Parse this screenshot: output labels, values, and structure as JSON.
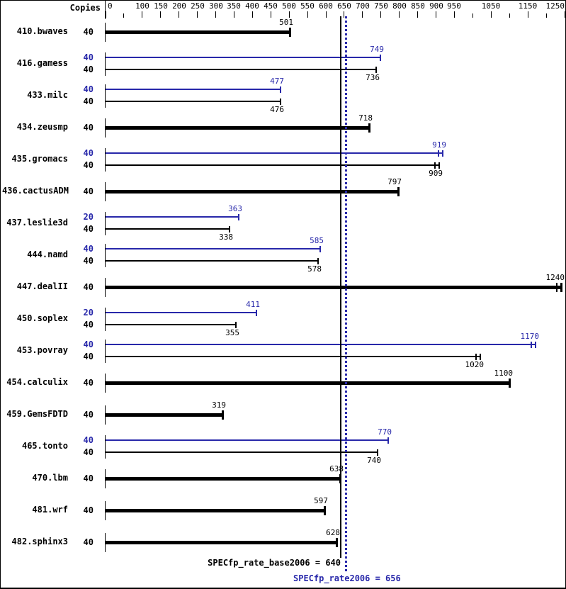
{
  "header": {
    "copies_label": "Copies"
  },
  "colors": {
    "base": "#000000",
    "peak": "#2828aa",
    "background": "#ffffff"
  },
  "axis": {
    "min": 0,
    "max": 1250,
    "ticks": [
      {
        "v": 0,
        "label": "0"
      },
      {
        "v": 50,
        "label": ""
      },
      {
        "v": 100,
        "label": "100"
      },
      {
        "v": 150,
        "label": "150"
      },
      {
        "v": 200,
        "label": "200"
      },
      {
        "v": 250,
        "label": "250"
      },
      {
        "v": 300,
        "label": "300"
      },
      {
        "v": 350,
        "label": "350"
      },
      {
        "v": 400,
        "label": "400"
      },
      {
        "v": 450,
        "label": "450"
      },
      {
        "v": 500,
        "label": "500"
      },
      {
        "v": 550,
        "label": "550"
      },
      {
        "v": 600,
        "label": "600"
      },
      {
        "v": 650,
        "label": "650"
      },
      {
        "v": 700,
        "label": "700"
      },
      {
        "v": 750,
        "label": "750"
      },
      {
        "v": 800,
        "label": "800"
      },
      {
        "v": 850,
        "label": "850"
      },
      {
        "v": 900,
        "label": "900"
      },
      {
        "v": 950,
        "label": "950"
      },
      {
        "v": 1000,
        "label": ""
      },
      {
        "v": 1050,
        "label": "1050"
      },
      {
        "v": 1100,
        "label": ""
      },
      {
        "v": 1150,
        "label": "1150"
      },
      {
        "v": 1200,
        "label": ""
      },
      {
        "v": 1250,
        "label": "1250"
      }
    ]
  },
  "ref_lines": [
    {
      "name": "base",
      "value": 640,
      "style": "solid",
      "color": "#000000"
    },
    {
      "name": "peak",
      "value": 656,
      "style": "dotted",
      "color": "#2828aa"
    }
  ],
  "footer": {
    "base_label": "SPECfp_rate_base2006 = 640",
    "peak_label": "SPECfp_rate2006 = 656"
  },
  "benchmarks": [
    {
      "name": "410.bwaves",
      "bars": [
        {
          "series": "base",
          "copies": "40",
          "value": 501,
          "bold": true
        }
      ]
    },
    {
      "name": "416.gamess",
      "bars": [
        {
          "series": "peak",
          "copies": "40",
          "value": 749
        },
        {
          "series": "base",
          "copies": "40",
          "value": 736
        }
      ]
    },
    {
      "name": "433.milc",
      "bars": [
        {
          "series": "peak",
          "copies": "40",
          "value": 477
        },
        {
          "series": "base",
          "copies": "40",
          "value": 476
        }
      ]
    },
    {
      "name": "434.zeusmp",
      "bars": [
        {
          "series": "base",
          "copies": "40",
          "value": 718,
          "bold": true
        }
      ]
    },
    {
      "name": "435.gromacs",
      "bars": [
        {
          "series": "peak",
          "copies": "40",
          "value": 919,
          "range": true
        },
        {
          "series": "base",
          "copies": "40",
          "value": 909,
          "range": true
        }
      ]
    },
    {
      "name": "436.cactusADM",
      "bars": [
        {
          "series": "base",
          "copies": "40",
          "value": 797,
          "bold": true
        }
      ]
    },
    {
      "name": "437.leslie3d",
      "bars": [
        {
          "series": "peak",
          "copies": "20",
          "value": 363
        },
        {
          "series": "base",
          "copies": "40",
          "value": 338
        }
      ]
    },
    {
      "name": "444.namd",
      "bars": [
        {
          "series": "peak",
          "copies": "40",
          "value": 585
        },
        {
          "series": "base",
          "copies": "40",
          "value": 578
        }
      ]
    },
    {
      "name": "447.dealII",
      "bars": [
        {
          "series": "base",
          "copies": "40",
          "value": 1240,
          "bold": true,
          "range": true
        }
      ]
    },
    {
      "name": "450.soplex",
      "bars": [
        {
          "series": "peak",
          "copies": "20",
          "value": 411
        },
        {
          "series": "base",
          "copies": "40",
          "value": 355
        }
      ]
    },
    {
      "name": "453.povray",
      "bars": [
        {
          "series": "peak",
          "copies": "40",
          "value": 1170,
          "range": true
        },
        {
          "series": "base",
          "copies": "40",
          "value": 1020,
          "range": true
        }
      ]
    },
    {
      "name": "454.calculix",
      "bars": [
        {
          "series": "base",
          "copies": "40",
          "value": 1100,
          "bold": true
        }
      ]
    },
    {
      "name": "459.GemsFDTD",
      "bars": [
        {
          "series": "base",
          "copies": "40",
          "value": 319,
          "bold": true
        }
      ]
    },
    {
      "name": "465.tonto",
      "bars": [
        {
          "series": "peak",
          "copies": "40",
          "value": 770
        },
        {
          "series": "base",
          "copies": "40",
          "value": 740
        }
      ]
    },
    {
      "name": "470.lbm",
      "bars": [
        {
          "series": "base",
          "copies": "40",
          "value": 638,
          "bold": true
        }
      ]
    },
    {
      "name": "481.wrf",
      "bars": [
        {
          "series": "base",
          "copies": "40",
          "value": 597,
          "bold": true
        }
      ]
    },
    {
      "name": "482.sphinx3",
      "bars": [
        {
          "series": "base",
          "copies": "40",
          "value": 628,
          "bold": true
        }
      ]
    }
  ],
  "chart_data": {
    "type": "bar",
    "orientation": "horizontal",
    "title": "",
    "xlabel": "",
    "ylabel": "Copies",
    "xlim": [
      0,
      1250
    ],
    "grid": false,
    "categories": [
      "410.bwaves",
      "416.gamess",
      "433.milc",
      "434.zeusmp",
      "435.gromacs",
      "436.cactusADM",
      "437.leslie3d",
      "444.namd",
      "447.dealII",
      "450.soplex",
      "453.povray",
      "454.calculix",
      "459.GemsFDTD",
      "465.tonto",
      "470.lbm",
      "481.wrf",
      "482.sphinx3"
    ],
    "series": [
      {
        "name": "SPECfp_rate2006 (peak)",
        "color": "#2828aa",
        "copies": [
          null,
          "40",
          "40",
          null,
          "40",
          null,
          "20",
          "40",
          null,
          "20",
          "40",
          null,
          null,
          "40",
          null,
          null,
          null
        ],
        "values": [
          null,
          749,
          477,
          null,
          919,
          null,
          363,
          585,
          null,
          411,
          1170,
          null,
          null,
          770,
          null,
          null,
          null
        ]
      },
      {
        "name": "SPECfp_rate_base2006",
        "color": "#000000",
        "copies": [
          "40",
          "40",
          "40",
          "40",
          "40",
          "40",
          "40",
          "40",
          "40",
          "40",
          "40",
          "40",
          "40",
          "40",
          "40",
          "40",
          "40"
        ],
        "values": [
          501,
          736,
          476,
          718,
          909,
          797,
          338,
          578,
          1240,
          355,
          1020,
          1100,
          319,
          740,
          638,
          597,
          628
        ]
      }
    ],
    "reference_lines": [
      {
        "label": "SPECfp_rate_base2006 = 640",
        "value": 640,
        "style": "solid",
        "color": "#000000"
      },
      {
        "label": "SPECfp_rate2006 = 656",
        "value": 656,
        "style": "dotted",
        "color": "#2828aa"
      }
    ],
    "x_ticks_labeled": [
      0,
      100,
      150,
      200,
      250,
      300,
      350,
      400,
      450,
      500,
      550,
      600,
      650,
      700,
      750,
      800,
      850,
      900,
      950,
      1050,
      1150,
      1250
    ],
    "x_ticks_minor": [
      50,
      1000,
      1100,
      1200
    ]
  }
}
